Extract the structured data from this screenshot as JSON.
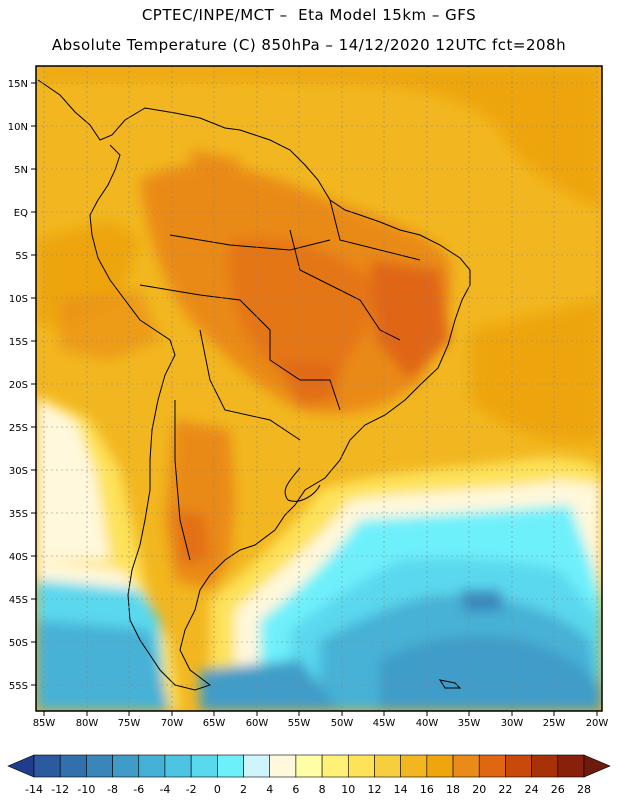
{
  "title": {
    "line1": "CPTEC/INPE/MCT –  Eta Model 15km – GFS",
    "line2": "Absolute Temperature (C) 850hPa – 14/12/2020 12UTC fct=208h"
  },
  "map": {
    "lat_labels": [
      "15N",
      "10N",
      "5N",
      "EQ",
      "5S",
      "10S",
      "15S",
      "20S",
      "25S",
      "30S",
      "35S",
      "40S",
      "45S",
      "50S",
      "55S"
    ],
    "lon_labels": [
      "85W",
      "80W",
      "75W",
      "70W",
      "65W",
      "60W",
      "55W",
      "50W",
      "45W",
      "40W",
      "35W",
      "30W",
      "25W",
      "20W"
    ],
    "lon_range": [
      -86,
      -19
    ],
    "lat_range": [
      17,
      -58
    ]
  },
  "colorbar": {
    "labels": [
      "-14",
      "-12",
      "-10",
      "-8",
      "-6",
      "-4",
      "-2",
      "0",
      "2",
      "4",
      "6",
      "8",
      "10",
      "12",
      "14",
      "16",
      "18",
      "20",
      "22",
      "24",
      "26",
      "28"
    ],
    "colors": [
      "#1f3d8c",
      "#2c5aa0",
      "#3270ad",
      "#3a86bb",
      "#3f9cc8",
      "#46b1d6",
      "#4ec4e3",
      "#5ad8ee",
      "#6ef0fb",
      "#cdf5fb",
      "#fff8dc",
      "#ffffa8",
      "#fff077",
      "#fde25a",
      "#f7cf3e",
      "#f2b720",
      "#eea50e",
      "#ea8a18",
      "#e06612",
      "#c9480c",
      "#a83208",
      "#88200b",
      "#6e1a0d"
    ]
  }
}
